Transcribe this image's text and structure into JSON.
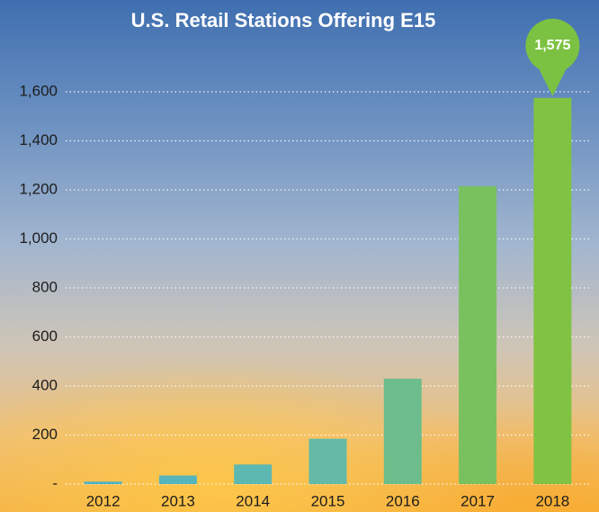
{
  "chart_data": {
    "type": "bar",
    "title": "U.S. Retail Stations Offering E15",
    "categories": [
      "2012",
      "2013",
      "2014",
      "2015",
      "2016",
      "2017",
      "2018"
    ],
    "values": [
      10,
      35,
      80,
      185,
      430,
      1215,
      1575
    ],
    "value_labels": [
      null,
      null,
      null,
      null,
      null,
      null,
      "1,575"
    ],
    "colors": [
      "#4fb2c6",
      "#55b5bd",
      "#5db8b2",
      "#64baa6",
      "#6dbd8c",
      "#79c05f",
      "#80c342"
    ],
    "label_color": "#7cc242",
    "ylim": [
      0,
      1600
    ],
    "yticks": [
      {
        "value": 0,
        "label": "-"
      },
      200,
      400,
      600,
      800,
      {
        "value": 1000,
        "label": "1,000"
      },
      {
        "value": 1200,
        "label": "1,200"
      },
      {
        "value": 1400,
        "label": "1,400"
      },
      {
        "value": 1600,
        "label": "1,600"
      }
    ],
    "grid": true
  }
}
